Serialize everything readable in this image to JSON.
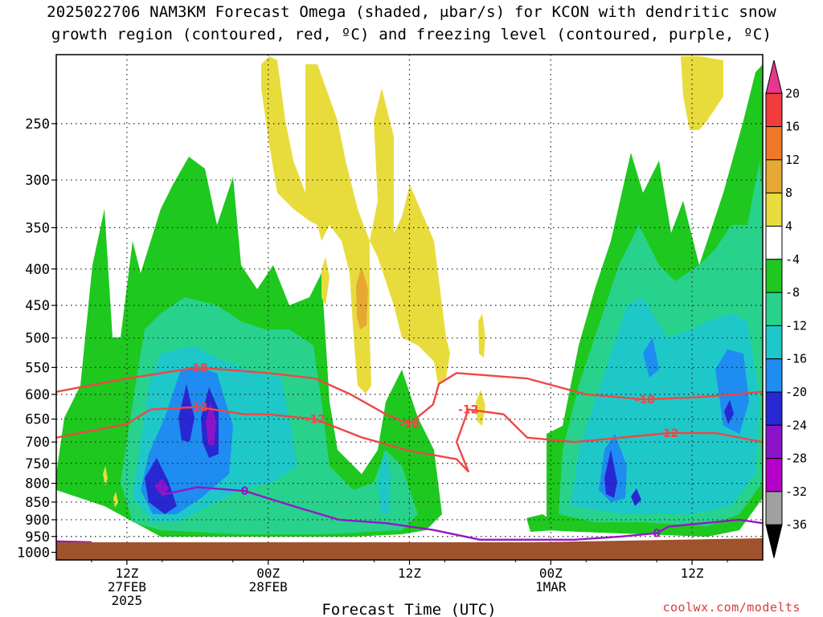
{
  "header": {
    "title_line1": "2025022706 NAM3KM Forecast Omega (shaded, μbar/s) for KCON with dendritic snow",
    "title_line2": "growth region (contoured, red, ºC) and freezing level (contoured, purple, ºC)"
  },
  "footer": {
    "credit": "coolwx.com/modelts"
  },
  "chart_data": {
    "type": "heatmap",
    "title": "2025022706 NAM3KM Forecast Omega (shaded, μbar/s) for KCON with dendritic snow growth region (contoured, red, ºC) and freezing level (contoured, purple, ºC)",
    "xlabel": "Forecast Time (UTC)",
    "ylabel": "",
    "x_forecast_hour_range": [
      0,
      60
    ],
    "x_ticks": [
      {
        "hour": 6,
        "line1": "12Z",
        "line2": "27FEB",
        "line3": "2025"
      },
      {
        "hour": 18,
        "line1": "00Z",
        "line2": "28FEB",
        "line3": ""
      },
      {
        "hour": 30,
        "line1": "12Z",
        "line2": "",
        "line3": ""
      },
      {
        "hour": 42,
        "line1": "00Z",
        "line2": "1MAR",
        "line3": ""
      },
      {
        "hour": 54,
        "line1": "12Z",
        "line2": "",
        "line3": ""
      }
    ],
    "y_scale": "pressure (log), hPa, inverted",
    "y_range_hpa": [
      1025,
      200
    ],
    "y_ticks": [
      250,
      300,
      350,
      400,
      450,
      500,
      550,
      600,
      650,
      700,
      750,
      800,
      850,
      900,
      950,
      1000
    ],
    "grid": true,
    "colorbar": {
      "labels": [
        20,
        16,
        12,
        8,
        4,
        -4,
        -8,
        -12,
        -16,
        -20,
        -24,
        -28,
        -32,
        -36
      ],
      "bins": [
        {
          "color": "#e8368e",
          "lo": 20,
          "hi": 24
        },
        {
          "color": "#f03c3c",
          "lo": 16,
          "hi": 20
        },
        {
          "color": "#f07828",
          "lo": 12,
          "hi": 16
        },
        {
          "color": "#e6a832",
          "lo": 8,
          "hi": 12
        },
        {
          "color": "#e8dc3c",
          "lo": 4,
          "hi": 8
        },
        {
          "color": "#ffffff",
          "lo": -4,
          "hi": 4
        },
        {
          "color": "#1ec81e",
          "lo": -8,
          "hi": -4
        },
        {
          "color": "#28d28c",
          "lo": -12,
          "hi": -8
        },
        {
          "color": "#1ec8c8",
          "lo": -16,
          "hi": -12
        },
        {
          "color": "#1e8cf0",
          "lo": -20,
          "hi": -16
        },
        {
          "color": "#2828d2",
          "lo": -24,
          "hi": -20
        },
        {
          "color": "#8c14c8",
          "lo": -28,
          "hi": -24
        },
        {
          "color": "#b400c8",
          "lo": -32,
          "hi": -28
        },
        {
          "color": "#a0a0a0",
          "lo": -36,
          "hi": -32
        },
        {
          "color": "#000000",
          "lo": -40,
          "hi": -36
        }
      ]
    },
    "omega_regions": [
      {
        "name": "early-ascent",
        "hours": [
          8.5,
          22
        ],
        "top_hpa": 290,
        "level": "-8 to -12",
        "min": -32,
        "min_at": {
          "hour": 9,
          "hpa": 840
        }
      },
      {
        "name": "mid-ascent",
        "hours": [
          26,
          33
        ],
        "top_hpa": 560,
        "level": "-8 to -12",
        "min": -16,
        "min_at": {
          "hour": 28.5,
          "hpa": 850
        }
      },
      {
        "name": "late-ascent",
        "hours": [
          42,
          60
        ],
        "top_hpa": 205,
        "level": "-8 to -12",
        "min": -24,
        "min_at": {
          "hour": 47,
          "hpa": 810
        }
      },
      {
        "name": "upper-descent",
        "hours": [
          18,
          34
        ],
        "top_hpa": 200,
        "level": "4 to 8",
        "max": 12,
        "max_at": {
          "hour": 25.5,
          "hpa": 430
        }
      },
      {
        "name": "late-upper-descent",
        "hours": [
          54,
          58
        ],
        "top_hpa": 200,
        "level": "4 to 8",
        "max": 8,
        "max_at": {
          "hour": 55,
          "hpa": 220
        }
      }
    ],
    "dgz_contours": [
      {
        "label": "-18",
        "color": "#f04646",
        "points": [
          [
            0,
            595
          ],
          [
            6,
            570
          ],
          [
            12,
            550
          ],
          [
            18,
            560
          ],
          [
            22,
            570
          ],
          [
            25,
            600
          ],
          [
            28,
            640
          ],
          [
            30,
            660
          ],
          [
            32,
            620
          ],
          [
            32.5,
            580
          ],
          [
            34,
            560
          ],
          [
            40,
            570
          ],
          [
            45,
            600
          ],
          [
            50,
            610
          ],
          [
            55,
            605
          ],
          [
            60,
            595
          ]
        ]
      },
      {
        "label": "-12",
        "color": "#f04646",
        "points": [
          [
            0,
            690
          ],
          [
            6,
            660
          ],
          [
            8,
            630
          ],
          [
            12,
            625
          ],
          [
            16,
            640
          ],
          [
            18,
            640
          ],
          [
            22,
            650
          ],
          [
            26,
            690
          ],
          [
            30,
            720
          ],
          [
            34,
            740
          ],
          [
            35,
            770
          ],
          [
            34,
            700
          ],
          [
            35,
            630
          ],
          [
            38,
            640
          ],
          [
            40,
            690
          ],
          [
            44,
            700
          ],
          [
            48,
            690
          ],
          [
            52,
            680
          ],
          [
            56,
            680
          ],
          [
            60,
            700
          ]
        ]
      }
    ],
    "freezing_level_contours": [
      {
        "label": "0",
        "color": "#9616c8",
        "points": [
          [
            9,
            830
          ],
          [
            12,
            810
          ],
          [
            16,
            820
          ],
          [
            20,
            860
          ],
          [
            24,
            900
          ],
          [
            28,
            910
          ],
          [
            32,
            930
          ],
          [
            36,
            960
          ],
          [
            40,
            960
          ],
          [
            44,
            960
          ],
          [
            48,
            950
          ],
          [
            51,
            940
          ],
          [
            52,
            920
          ],
          [
            55,
            910
          ],
          [
            58,
            900
          ],
          [
            60,
            910
          ]
        ]
      },
      {
        "label": "",
        "color": "#9616c8",
        "points": [
          [
            0,
            965
          ],
          [
            3,
            968
          ]
        ]
      }
    ]
  }
}
